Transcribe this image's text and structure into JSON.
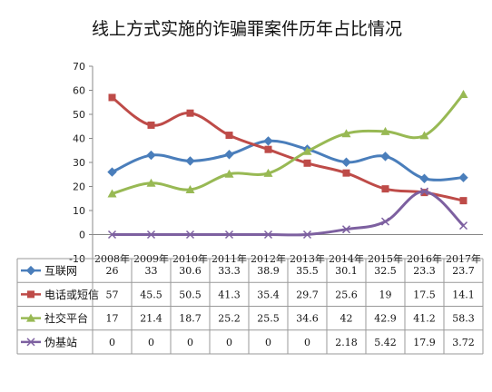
{
  "chart_data": {
    "type": "line",
    "title": "线上方式实施的诈骗罪案件历年占比情况",
    "xlabel": "",
    "ylabel": "",
    "categories": [
      "2008年",
      "2009年",
      "2010年",
      "2011年",
      "2012年",
      "2013年",
      "2014年",
      "2015年",
      "2016年",
      "2017年"
    ],
    "ylim": [
      -10,
      70
    ],
    "yticks": [
      -10,
      0,
      10,
      20,
      30,
      40,
      50,
      60,
      70
    ],
    "grid": false,
    "legend": "data table below chart",
    "series": [
      {
        "name": "互联网",
        "color": "#4a7ebb",
        "marker": "diamond",
        "values": [
          26,
          33,
          30.6,
          33.3,
          38.9,
          35.5,
          30.1,
          32.5,
          23.3,
          23.7
        ]
      },
      {
        "name": "电话或短信",
        "color": "#be4b48",
        "marker": "square",
        "values": [
          57,
          45.5,
          50.5,
          41.3,
          35.4,
          29.7,
          25.6,
          19,
          17.5,
          14.1
        ]
      },
      {
        "name": "社交平台",
        "color": "#98b954",
        "marker": "triangle",
        "values": [
          17,
          21.4,
          18.7,
          25.2,
          25.5,
          34.6,
          42,
          42.9,
          41.2,
          58.3
        ]
      },
      {
        "name": "伪基站",
        "color": "#7d60a0",
        "marker": "x",
        "values": [
          0,
          0,
          0,
          0,
          0,
          0,
          2.18,
          5.42,
          17.9,
          3.72
        ]
      }
    ]
  },
  "table_display": [
    [
      "26",
      "33",
      "30.6",
      "33.3",
      "38.9",
      "35.5",
      "30.1",
      "32.5",
      "23.3",
      "23.7"
    ],
    [
      "57",
      "45.5",
      "50.5",
      "41.3",
      "35.4",
      "29.7",
      "25.6",
      "19",
      "17.5",
      "14.1"
    ],
    [
      "17",
      "21.4",
      "18.7",
      "25.2",
      "25.5",
      "34.6",
      "42",
      "42.9",
      "41.2",
      "58.3"
    ],
    [
      "0",
      "0",
      "0",
      "0",
      "0",
      "0",
      "2.18",
      "5.42",
      "17.9",
      "3.72"
    ]
  ]
}
